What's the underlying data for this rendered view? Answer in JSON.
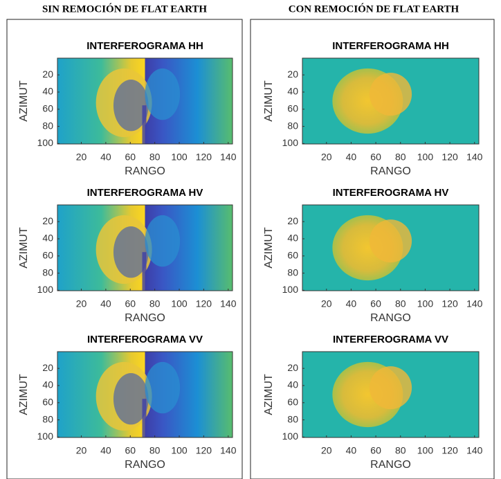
{
  "columns": [
    "SIN REMOCIÓN DE FLAT EARTH",
    "CON REMOCIÓN DE FLAT EARTH"
  ],
  "chart_data": [
    {
      "type": "image",
      "title": "INTERFEROGRAMA HH",
      "xlabel": "RANGO",
      "ylabel": "AZIMUT",
      "xlim": [
        0.5,
        143.5
      ],
      "ylim": [
        0.5,
        100.5
      ],
      "ydir": "reverse",
      "xticks": [
        20,
        40,
        60,
        80,
        100,
        120,
        140
      ],
      "yticks": [
        20,
        40,
        60,
        80,
        100
      ]
    },
    {
      "type": "image",
      "title": "INTERFEROGRAMA HV",
      "xlabel": "RANGO",
      "ylabel": "AZIMUT",
      "xlim": [
        0.5,
        143.5
      ],
      "ylim": [
        0.5,
        100.5
      ],
      "ydir": "reverse",
      "xticks": [
        20,
        40,
        60,
        80,
        100,
        120,
        140
      ],
      "yticks": [
        20,
        40,
        60,
        80,
        100
      ]
    },
    {
      "type": "image",
      "title": "INTERFEROGRAMA VV",
      "xlabel": "RANGO",
      "ylabel": "AZIMUT",
      "xlim": [
        0.5,
        143.5
      ],
      "ylim": [
        0.5,
        100.5
      ],
      "ydir": "reverse",
      "xticks": [
        20,
        40,
        60,
        80,
        100,
        120,
        140
      ],
      "yticks": [
        20,
        40,
        60,
        80,
        100
      ]
    },
    {
      "type": "image",
      "title": "INTERFEROGRAMA HH",
      "xlabel": "RANGO",
      "ylabel": "AZIMUT",
      "xlim": [
        0.5,
        143.5
      ],
      "ylim": [
        0.5,
        100.5
      ],
      "ydir": "reverse",
      "xticks": [
        20,
        40,
        60,
        80,
        100,
        120,
        140
      ],
      "yticks": [
        20,
        40,
        60,
        80,
        100
      ]
    },
    {
      "type": "image",
      "title": "INTERFEROGRAMA HV",
      "xlabel": "RANGO",
      "ylabel": "AZIMUT",
      "xlim": [
        0.5,
        143.5
      ],
      "ylim": [
        0.5,
        100.5
      ],
      "ydir": "reverse",
      "xticks": [
        20,
        40,
        60,
        80,
        100,
        120,
        140
      ],
      "yticks": [
        20,
        40,
        60,
        80,
        100
      ]
    },
    {
      "type": "image",
      "title": "INTERFEROGRAMA VV",
      "xlabel": "RANGO",
      "ylabel": "AZIMUT",
      "xlim": [
        0.5,
        143.5
      ],
      "ylim": [
        0.5,
        100.5
      ],
      "ydir": "reverse",
      "xticks": [
        20,
        40,
        60,
        80,
        100,
        120,
        140
      ],
      "yticks": [
        20,
        40,
        60,
        80,
        100
      ]
    }
  ]
}
